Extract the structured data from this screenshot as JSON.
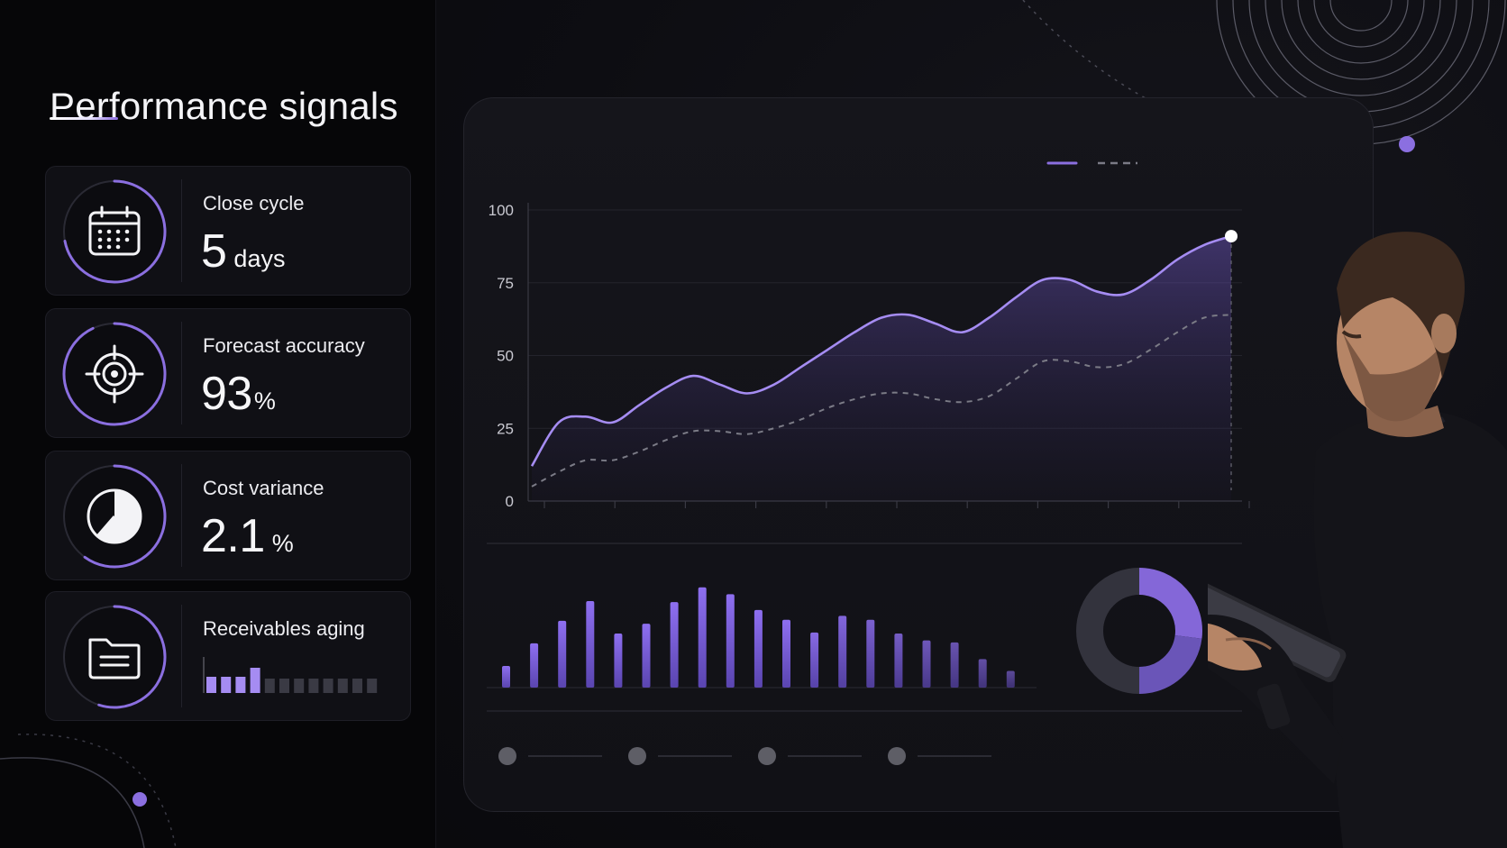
{
  "page": {
    "title": "Performance signals"
  },
  "metrics": [
    {
      "label": "Close cycle",
      "value": "5",
      "unit": "days",
      "icon": "calendar-icon",
      "progress": 0.72
    },
    {
      "label": "Forecast accuracy",
      "value": "93",
      "unit": "%",
      "icon": "target-icon",
      "progress": 0.93
    },
    {
      "label": "Cost variance",
      "value": "2.1",
      "unit": "%",
      "icon": "pie-icon",
      "progress": 0.6
    },
    {
      "label": "Receivables aging",
      "icon": "folder-icon",
      "progress": 0.55,
      "aging_bars": [
        0.45,
        0.45,
        0.45,
        0.7,
        0.4,
        0.4,
        0.4,
        0.4,
        0.4,
        0.4,
        0.4,
        0.4
      ],
      "aging_highlighted": 4
    }
  ],
  "colors": {
    "accent": "#8b6fe0",
    "accent_light": "#a58cf2",
    "dashed_series": "#7b7b86",
    "muted_bar": "#3a3a44"
  },
  "chart_data": [
    {
      "type": "area",
      "yticks": [
        0,
        25,
        50,
        75,
        100
      ],
      "ylim": [
        0,
        100
      ],
      "grid": true,
      "legend": "top-right",
      "series": [
        {
          "values": [
            12,
            27,
            29,
            27,
            33,
            39,
            43,
            40,
            37,
            40,
            46,
            52,
            58,
            63,
            64,
            61,
            58,
            63,
            70,
            76,
            76,
            72,
            71,
            76,
            83,
            88,
            91
          ]
        },
        {
          "values": [
            5,
            10,
            14,
            14,
            17,
            21,
            24,
            24,
            23,
            25,
            28,
            32,
            35,
            37,
            37,
            35,
            34,
            36,
            42,
            48,
            48,
            46,
            47,
            52,
            58,
            63,
            64
          ],
          "style": "dashed"
        }
      ]
    },
    {
      "type": "bar",
      "values": [
        22,
        45,
        68,
        88,
        55,
        65,
        87,
        102,
        95,
        79,
        69,
        56,
        73,
        69,
        55,
        48,
        46,
        29,
        17
      ]
    },
    {
      "type": "pie",
      "slices": [
        0.27,
        0.23,
        0.5
      ]
    }
  ],
  "pager": {
    "steps": 4
  }
}
